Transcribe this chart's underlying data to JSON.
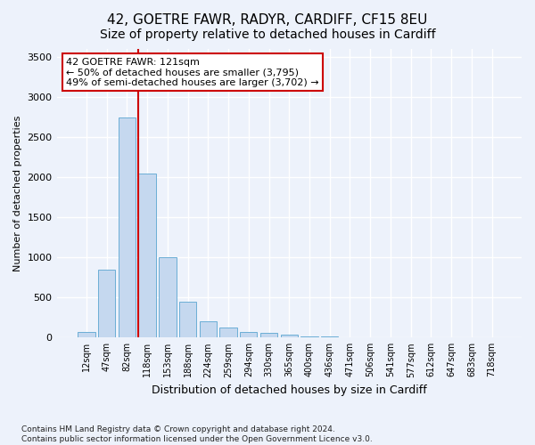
{
  "title": "42, GOETRE FAWR, RADYR, CARDIFF, CF15 8EU",
  "subtitle": "Size of property relative to detached houses in Cardiff",
  "xlabel": "Distribution of detached houses by size in Cardiff",
  "ylabel": "Number of detached properties",
  "bins": [
    "12sqm",
    "47sqm",
    "82sqm",
    "118sqm",
    "153sqm",
    "188sqm",
    "224sqm",
    "259sqm",
    "294sqm",
    "330sqm",
    "365sqm",
    "400sqm",
    "436sqm",
    "471sqm",
    "506sqm",
    "541sqm",
    "577sqm",
    "612sqm",
    "647sqm",
    "683sqm",
    "718sqm"
  ],
  "values": [
    75,
    850,
    2750,
    2050,
    1000,
    450,
    200,
    130,
    75,
    60,
    40,
    20,
    10,
    5,
    3,
    2,
    1,
    1,
    0,
    0,
    0
  ],
  "bar_color": "#c5d8ef",
  "bar_edge_color": "#6baed6",
  "red_line_index": 3,
  "annotation_text": "42 GOETRE FAWR: 121sqm\n← 50% of detached houses are smaller (3,795)\n49% of semi-detached houses are larger (3,702) →",
  "annotation_box_color": "#ffffff",
  "annotation_box_edge": "#cc0000",
  "red_line_color": "#cc0000",
  "ylim": [
    0,
    3600
  ],
  "yticks": [
    0,
    500,
    1000,
    1500,
    2000,
    2500,
    3000,
    3500
  ],
  "footer_text": "Contains HM Land Registry data © Crown copyright and database right 2024.\nContains public sector information licensed under the Open Government Licence v3.0.",
  "bg_color": "#edf2fb",
  "grid_color": "#ffffff",
  "title_fontsize": 11,
  "subtitle_fontsize": 10
}
